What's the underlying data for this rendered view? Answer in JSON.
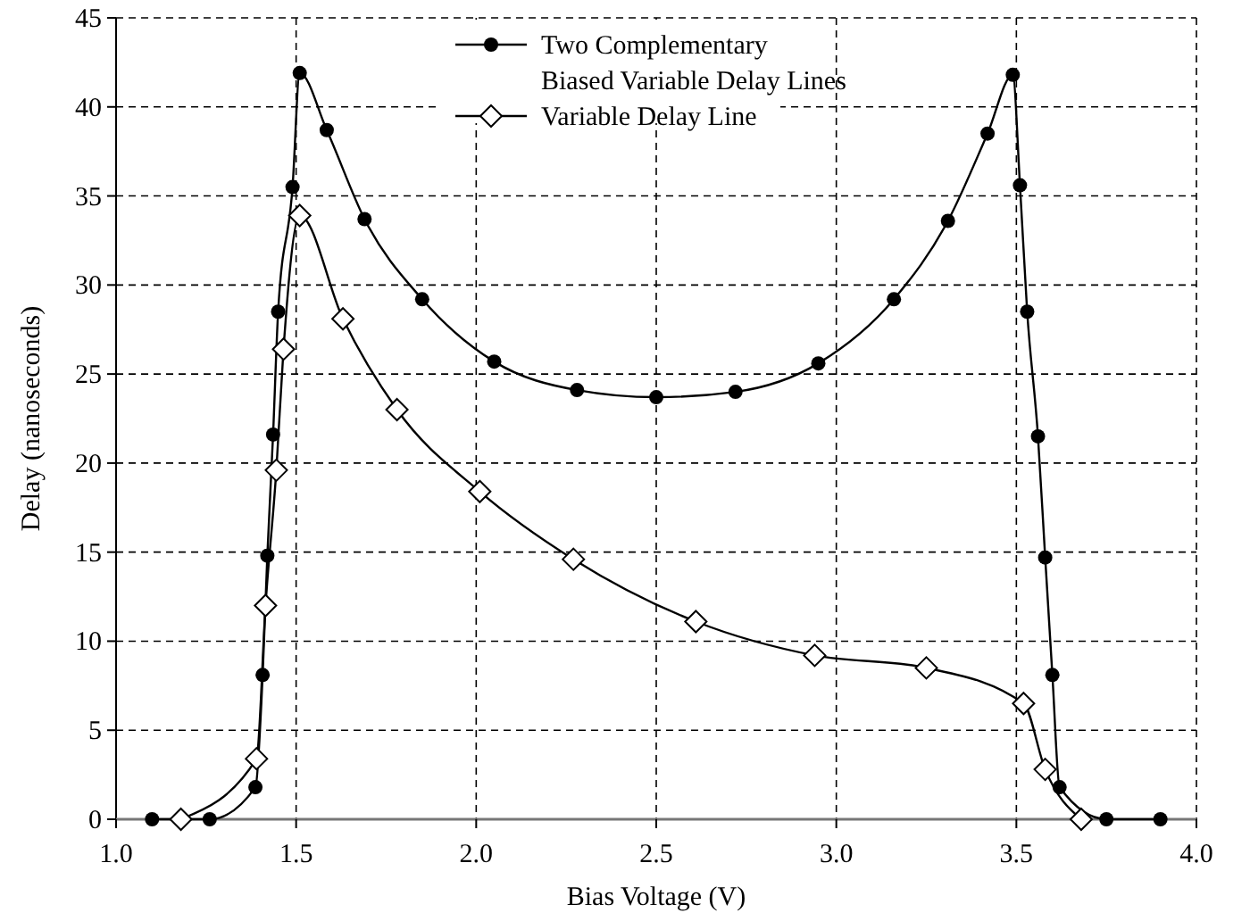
{
  "chart_data": {
    "type": "line",
    "xlabel": "Bias Voltage (V)",
    "ylabel": "Delay (nanoseconds)",
    "xlim": [
      1,
      4
    ],
    "xticks": [
      {
        "value": 1,
        "label": "1.0"
      },
      {
        "value": 1.5,
        "label": "1.5"
      },
      {
        "value": 2,
        "label": "2.0"
      },
      {
        "value": 2.5,
        "label": "2.5"
      },
      {
        "value": 3,
        "label": "3.0"
      },
      {
        "value": 3.5,
        "label": "3.5"
      },
      {
        "value": 4,
        "label": "4.0"
      }
    ],
    "ylim": [
      0,
      45
    ],
    "yticks": [
      0,
      5,
      10,
      15,
      20,
      25,
      30,
      35,
      40,
      45
    ],
    "grid": true,
    "legend": "top",
    "series": [
      {
        "name": "Two Complementary\nBiased Variable Delay Lines",
        "color": "#000000",
        "marker": "circle",
        "x": [
          1.1,
          1.26,
          1.387,
          1.407,
          1.42,
          1.436,
          1.45,
          1.49,
          1.51,
          1.585,
          1.69,
          1.85,
          2.05,
          2.28,
          2.5,
          2.72,
          2.95,
          3.16,
          3.31,
          3.42,
          3.49,
          3.51,
          3.53,
          3.56,
          3.58,
          3.6,
          3.62,
          3.75,
          3.9
        ],
        "values": [
          0,
          0,
          1.8,
          8.1,
          14.8,
          21.6,
          28.5,
          35.5,
          41.9,
          38.7,
          33.7,
          29.2,
          25.7,
          24.1,
          23.7,
          24,
          25.6,
          29.2,
          33.6,
          38.5,
          41.8,
          35.6,
          28.5,
          21.5,
          14.7,
          8.1,
          1.8,
          0,
          0
        ]
      },
      {
        "name": "Variable Delay Line",
        "color": "#000000",
        "marker": "diamond",
        "x": [
          1.18,
          1.39,
          1.415,
          1.445,
          1.465,
          1.51,
          1.63,
          1.78,
          2.01,
          2.27,
          2.61,
          2.94,
          3.25,
          3.52,
          3.58,
          3.68
        ],
        "values": [
          0,
          3.4,
          12,
          19.6,
          26.4,
          33.9,
          28.1,
          23,
          18.4,
          14.6,
          11.1,
          9.2,
          8.5,
          6.5,
          2.8,
          0
        ]
      }
    ]
  }
}
